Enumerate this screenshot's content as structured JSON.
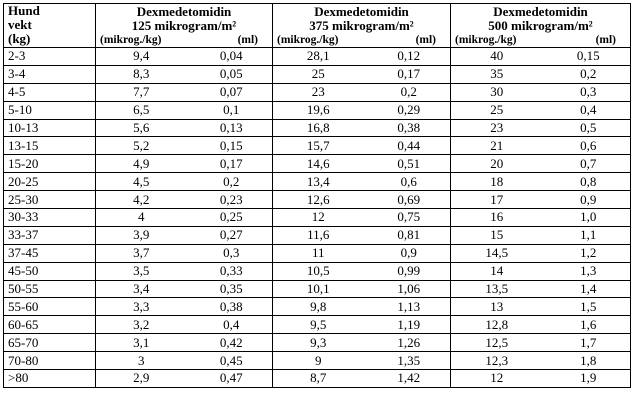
{
  "table": {
    "weight_header": [
      "Hund",
      "vekt",
      "(kg)"
    ],
    "groups": [
      {
        "title": [
          "Dexmedetomidin",
          "125 mikrogram/m²"
        ],
        "columns": [
          "(mikrog./kg)",
          "(ml)"
        ]
      },
      {
        "title": [
          "Dexmedetomidin",
          "375 mikrogram/m²"
        ],
        "columns": [
          "(mikrog./kg)",
          "(ml)"
        ]
      },
      {
        "title": [
          "Dexmedetomidin",
          "500 mikrogram/m²"
        ],
        "columns": [
          "(mikrog./kg)",
          "(ml)"
        ]
      }
    ],
    "rows": [
      [
        "2-3",
        "9,4",
        "0,04",
        "28,1",
        "0,12",
        "40",
        "0,15"
      ],
      [
        "3-4",
        "8,3",
        "0,05",
        "25",
        "0,17",
        "35",
        "0,2"
      ],
      [
        "4-5",
        "7,7",
        "0,07",
        "23",
        "0,2",
        "30",
        "0,3"
      ],
      [
        "5-10",
        "6,5",
        "0,1",
        "19,6",
        "0,29",
        "25",
        "0,4"
      ],
      [
        "10-13",
        "5,6",
        "0,13",
        "16,8",
        "0,38",
        "23",
        "0,5"
      ],
      [
        "13-15",
        "5,2",
        "0,15",
        "15,7",
        "0,44",
        "21",
        "0,6"
      ],
      [
        "15-20",
        "4,9",
        "0,17",
        "14,6",
        "0,51",
        "20",
        "0,7"
      ],
      [
        "20-25",
        "4,5",
        "0,2",
        "13,4",
        "0,6",
        "18",
        "0,8"
      ],
      [
        "25-30",
        "4,2",
        "0,23",
        "12,6",
        "0,69",
        "17",
        "0,9"
      ],
      [
        "30-33",
        "4",
        "0,25",
        "12",
        "0,75",
        "16",
        "1,0"
      ],
      [
        "33-37",
        "3,9",
        "0,27",
        "11,6",
        "0,81",
        "15",
        "1,1"
      ],
      [
        "37-45",
        "3,7",
        "0,3",
        "11",
        "0,9",
        "14,5",
        "1,2"
      ],
      [
        "45-50",
        "3,5",
        "0,33",
        "10,5",
        "0,99",
        "14",
        "1,3"
      ],
      [
        "50-55",
        "3,4",
        "0,35",
        "10,1",
        "1,06",
        "13,5",
        "1,4"
      ],
      [
        "55-60",
        "3,3",
        "0,38",
        "9,8",
        "1,13",
        "13",
        "1,5"
      ],
      [
        "60-65",
        "3,2",
        "0,4",
        "9,5",
        "1,19",
        "12,8",
        "1,6"
      ],
      [
        "65-70",
        "3,1",
        "0,42",
        "9,3",
        "1,26",
        "12,5",
        "1,7"
      ],
      [
        "70-80",
        "3",
        "0,45",
        "9",
        "1,35",
        "12,3",
        "1,8"
      ],
      [
        ">80",
        "2,9",
        "0,47",
        "8,7",
        "1,42",
        "12",
        "1,9"
      ]
    ]
  }
}
